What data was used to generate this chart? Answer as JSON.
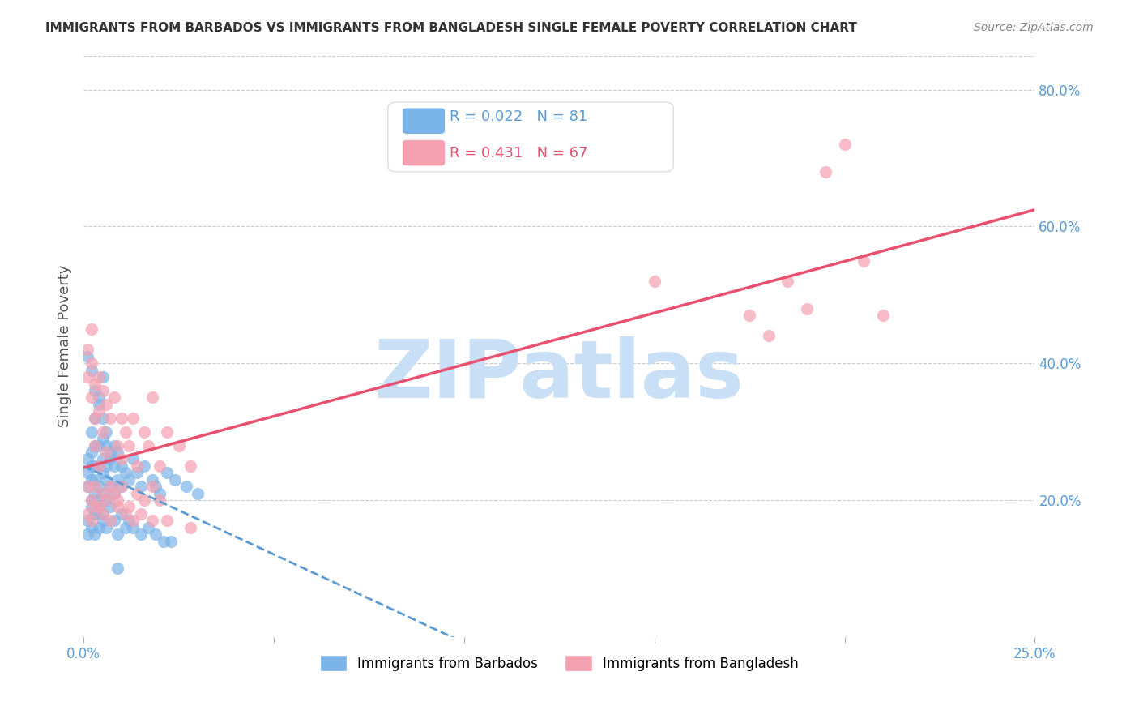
{
  "title": "IMMIGRANTS FROM BARBADOS VS IMMIGRANTS FROM BANGLADESH SINGLE FEMALE POVERTY CORRELATION CHART",
  "source": "Source: ZipAtlas.com",
  "xlabel": "",
  "ylabel": "Single Female Poverty",
  "xlim": [
    0.0,
    0.25
  ],
  "ylim": [
    0.0,
    0.85
  ],
  "yticks_right": [
    0.2,
    0.4,
    0.6,
    0.8
  ],
  "ytick_labels_right": [
    "20.0%",
    "40.0%",
    "60.0%",
    "80.0%"
  ],
  "xticks": [
    0.0,
    0.05,
    0.1,
    0.15,
    0.2,
    0.25
  ],
  "xtick_labels": [
    "0.0%",
    "",
    "",
    "",
    "",
    "25.0%"
  ],
  "barbados_R": 0.022,
  "barbados_N": 81,
  "bangladesh_R": 0.431,
  "bangladesh_N": 67,
  "barbados_color": "#7ab4e8",
  "bangladesh_color": "#f4a0b0",
  "barbados_line_color": "#5b9bd5",
  "bangladesh_line_color": "#e85070",
  "watermark": "ZIPatlas",
  "watermark_color": "#c8dff5",
  "background_color": "#ffffff",
  "barbados_x": [
    0.001,
    0.001,
    0.001,
    0.002,
    0.002,
    0.002,
    0.002,
    0.002,
    0.003,
    0.003,
    0.003,
    0.003,
    0.003,
    0.003,
    0.004,
    0.004,
    0.004,
    0.004,
    0.004,
    0.005,
    0.005,
    0.005,
    0.005,
    0.005,
    0.005,
    0.006,
    0.006,
    0.006,
    0.006,
    0.007,
    0.007,
    0.008,
    0.008,
    0.009,
    0.009,
    0.01,
    0.01,
    0.011,
    0.012,
    0.013,
    0.014,
    0.015,
    0.016,
    0.018,
    0.019,
    0.02,
    0.022,
    0.024,
    0.027,
    0.03,
    0.001,
    0.001,
    0.002,
    0.002,
    0.003,
    0.003,
    0.004,
    0.004,
    0.005,
    0.006,
    0.007,
    0.008,
    0.009,
    0.01,
    0.011,
    0.012,
    0.013,
    0.015,
    0.017,
    0.019,
    0.021,
    0.023,
    0.001,
    0.002,
    0.003,
    0.004,
    0.005,
    0.006,
    0.007,
    0.008,
    0.009
  ],
  "barbados_y": [
    0.22,
    0.24,
    0.26,
    0.2,
    0.23,
    0.25,
    0.27,
    0.3,
    0.18,
    0.21,
    0.23,
    0.25,
    0.28,
    0.32,
    0.19,
    0.22,
    0.25,
    0.28,
    0.35,
    0.18,
    0.21,
    0.24,
    0.26,
    0.29,
    0.38,
    0.2,
    0.23,
    0.25,
    0.28,
    0.22,
    0.26,
    0.21,
    0.28,
    0.23,
    0.27,
    0.22,
    0.25,
    0.24,
    0.23,
    0.26,
    0.24,
    0.22,
    0.25,
    0.23,
    0.22,
    0.21,
    0.24,
    0.23,
    0.22,
    0.21,
    0.15,
    0.17,
    0.16,
    0.19,
    0.15,
    0.18,
    0.16,
    0.2,
    0.17,
    0.16,
    0.19,
    0.17,
    0.15,
    0.18,
    0.16,
    0.17,
    0.16,
    0.15,
    0.16,
    0.15,
    0.14,
    0.14,
    0.41,
    0.39,
    0.36,
    0.34,
    0.32,
    0.3,
    0.27,
    0.25,
    0.1
  ],
  "bangladesh_x": [
    0.001,
    0.001,
    0.002,
    0.002,
    0.002,
    0.003,
    0.003,
    0.003,
    0.004,
    0.004,
    0.004,
    0.005,
    0.005,
    0.006,
    0.006,
    0.007,
    0.008,
    0.009,
    0.01,
    0.01,
    0.011,
    0.012,
    0.013,
    0.014,
    0.016,
    0.017,
    0.018,
    0.02,
    0.022,
    0.025,
    0.028,
    0.001,
    0.002,
    0.003,
    0.004,
    0.005,
    0.006,
    0.007,
    0.008,
    0.009,
    0.01,
    0.012,
    0.014,
    0.016,
    0.018,
    0.02,
    0.001,
    0.002,
    0.003,
    0.005,
    0.007,
    0.009,
    0.011,
    0.013,
    0.015,
    0.018,
    0.022,
    0.028,
    0.15,
    0.175,
    0.18,
    0.185,
    0.19,
    0.195,
    0.2,
    0.205,
    0.21
  ],
  "bangladesh_y": [
    0.42,
    0.38,
    0.4,
    0.35,
    0.45,
    0.37,
    0.32,
    0.28,
    0.38,
    0.33,
    0.25,
    0.36,
    0.3,
    0.34,
    0.27,
    0.32,
    0.35,
    0.28,
    0.32,
    0.26,
    0.3,
    0.28,
    0.32,
    0.25,
    0.3,
    0.28,
    0.35,
    0.25,
    0.3,
    0.28,
    0.25,
    0.22,
    0.2,
    0.22,
    0.19,
    0.21,
    0.2,
    0.22,
    0.21,
    0.2,
    0.22,
    0.19,
    0.21,
    0.2,
    0.22,
    0.2,
    0.18,
    0.17,
    0.19,
    0.18,
    0.17,
    0.19,
    0.18,
    0.17,
    0.18,
    0.17,
    0.17,
    0.16,
    0.52,
    0.47,
    0.44,
    0.52,
    0.48,
    0.68,
    0.72,
    0.55,
    0.47
  ]
}
